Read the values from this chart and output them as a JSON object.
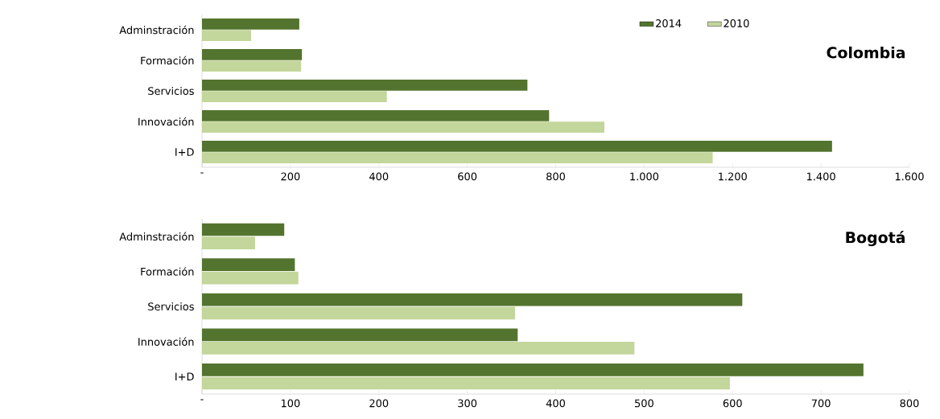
{
  "chart_data": [
    {
      "type": "bar",
      "orientation": "horizontal",
      "title": "Colombia",
      "categories": [
        "Adminstración",
        "Formación",
        "Servicios",
        "Innovación",
        "I+D"
      ],
      "series": [
        {
          "name": "2014",
          "color": "#53742e",
          "values": [
            220,
            226,
            736,
            785,
            1425
          ]
        },
        {
          "name": "2010",
          "color": "#c3d69b",
          "values": [
            111,
            224,
            418,
            910,
            1155
          ]
        }
      ],
      "xlim": [
        0,
        1600
      ],
      "xticks": [
        {
          "value": 0,
          "label": "-"
        },
        200,
        400,
        600,
        800,
        {
          "value": 1000,
          "label": "1.000"
        },
        {
          "value": 1200,
          "label": "1.200"
        },
        {
          "value": 1400,
          "label": "1.400"
        },
        {
          "value": 1600,
          "label": "1.600"
        }
      ],
      "legend": "top right"
    },
    {
      "type": "bar",
      "orientation": "horizontal",
      "title": "Bogotá",
      "categories": [
        "Adminstración",
        "Formación",
        "Servicios",
        "Innovación",
        "I+D"
      ],
      "series": [
        {
          "color": "#53742e",
          "values": [
            93,
            105,
            611,
            357,
            748
          ]
        },
        {
          "color": "#c3d69b",
          "values": [
            60,
            109,
            354,
            489,
            597
          ]
        }
      ],
      "xlim": [
        0,
        800
      ],
      "xticks": [
        {
          "value": 0,
          "label": "-"
        },
        100,
        200,
        300,
        400,
        500,
        600,
        700,
        800
      ]
    }
  ]
}
